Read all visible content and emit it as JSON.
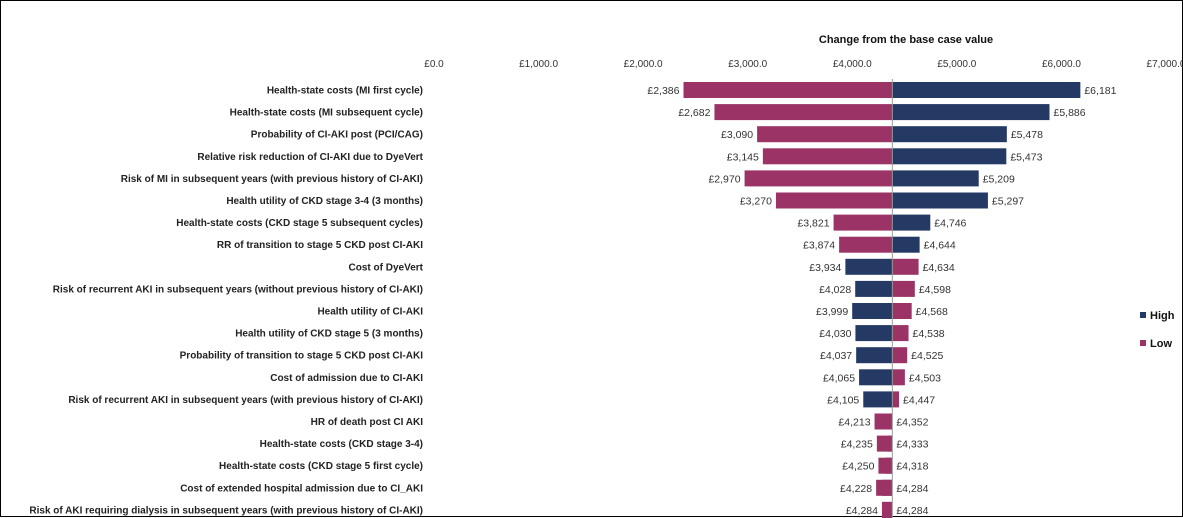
{
  "chart_data": {
    "type": "bar",
    "subtype": "tornado",
    "title": "Change from the base case value",
    "base_value": 4383,
    "xlim": [
      0,
      7000
    ],
    "x_ticks": [
      0,
      1000,
      2000,
      3000,
      4000,
      5000,
      6000,
      7000
    ],
    "x_tick_labels": [
      "£0.0",
      "£1,000.0",
      "£2,000.0",
      "£3,000.0",
      "£4,000.0",
      "£5,000.0",
      "£6,000.0",
      "£7,000.0"
    ],
    "legend": {
      "placement": "right",
      "items": [
        {
          "name": "High",
          "color": "#243a64"
        },
        {
          "name": "Low",
          "color": "#9b3366"
        }
      ]
    },
    "colors": {
      "high": "#243a64",
      "low": "#9b3366"
    },
    "series": [
      {
        "name": "High",
        "values": [
          6181,
          5886,
          5478,
          5473,
          5209,
          5297,
          4746,
          4644,
          3934,
          4028,
          3999,
          4030,
          4037,
          4065,
          4105,
          4352,
          4333,
          4318,
          4284,
          4284
        ]
      },
      {
        "name": "Low",
        "values": [
          2386,
          2682,
          3090,
          3145,
          2970,
          3270,
          3821,
          3874,
          4634,
          4598,
          4568,
          4538,
          4525,
          4503,
          4447,
          4213,
          4235,
          4250,
          4228,
          4284
        ]
      }
    ],
    "categories": [
      "Health-state costs (MI first cycle)",
      "Health-state costs (MI subsequent cycle)",
      "Probability of CI-AKI post  (PCI/CAG)",
      "Relative risk reduction of CI-AKI due to DyeVert",
      "Risk of MI in subsequent years (with previous history of CI-AKI)",
      "Health utility of CKD stage 3-4 (3 months)",
      "Health-state costs (CKD stage 5 subsequent cycles)",
      "RR of transition to stage 5 CKD post CI-AKI",
      "Cost of DyeVert",
      "Risk of recurrent AKI in subsequent years (without previous history of CI-AKI)",
      "Health utility of CI-AKI",
      "Health utility of CKD stage 5 (3 months)",
      "Probability of transition to stage 5 CKD post CI-AKI",
      "Cost of admission due to CI-AKI",
      "Risk of recurrent AKI in subsequent years (with previous history of CI-AKI)",
      "HR of death post CI AKI",
      "Health-state costs (CKD stage 3-4)",
      "Health-state costs (CKD stage 5 first cycle)",
      "Cost of extended hospital admission due to CI_AKI",
      "Risk of AKI requiring dialysis in subsequent years (with previous history of CI-AKI)"
    ],
    "left_labels": [
      "£2,386",
      "£2,682",
      "£3,090",
      "£3,145",
      "£2,970",
      "£3,270",
      "£3,821",
      "£3,874",
      "£3,934",
      "£4,028",
      "£3,999",
      "£4,030",
      "£4,037",
      "£4,065",
      "£4,105",
      "£4,213",
      "£4,235",
      "£4,250",
      "£4,228",
      "£4,284"
    ],
    "right_labels": [
      "£6,181",
      "£5,886",
      "£5,478",
      "£5,473",
      "£5,209",
      "£5,297",
      "£4,746",
      "£4,644",
      "£4,634",
      "£4,598",
      "£4,568",
      "£4,538",
      "£4,525",
      "£4,503",
      "£4,447",
      "£4,352",
      "£4,333",
      "£4,318",
      "£4,284",
      "£4,284"
    ],
    "grid": false
  }
}
